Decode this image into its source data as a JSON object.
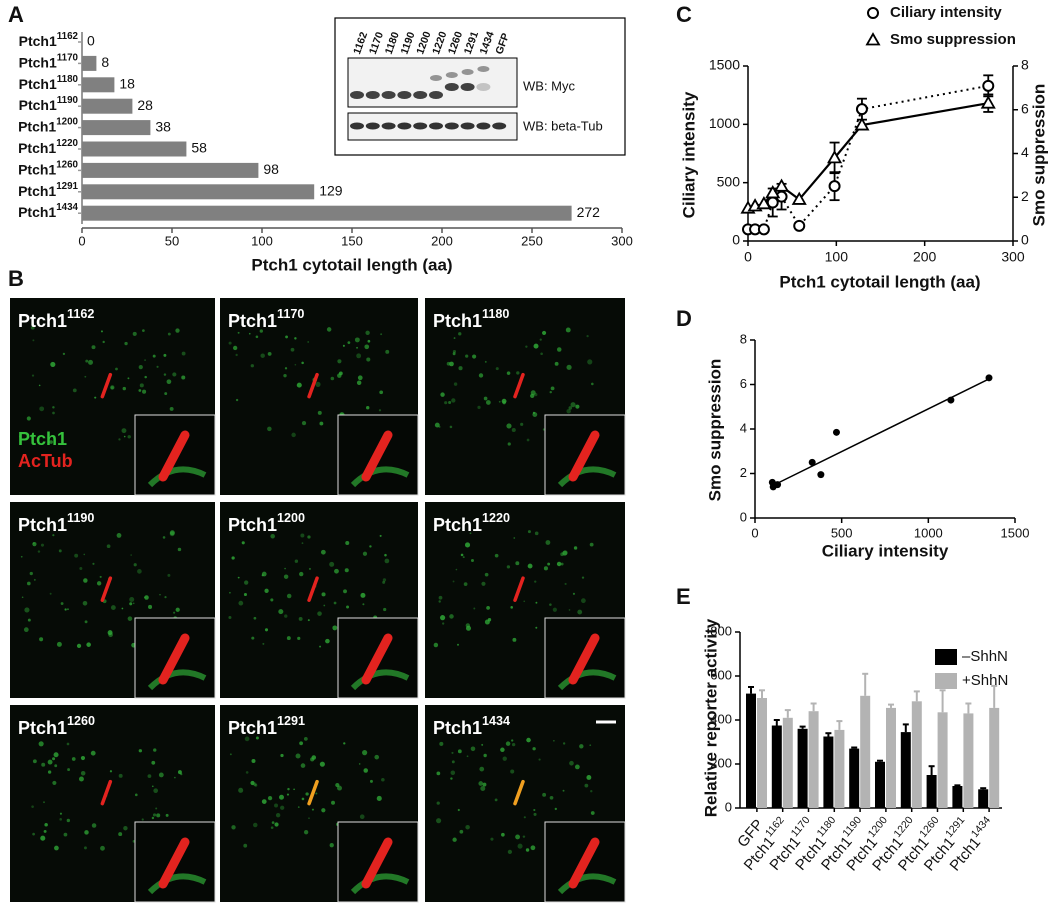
{
  "panels": [
    "A",
    "B",
    "C",
    "D",
    "E"
  ],
  "blot": {
    "lanes": [
      "1162",
      "1170",
      "1180",
      "1190",
      "1200",
      "1220",
      "1260",
      "1291",
      "1434",
      "GFP"
    ],
    "labels": [
      "WB: Myc",
      "WB: beta-Tub"
    ]
  },
  "micrographs": {
    "tiles": [
      {
        "text": "Ptch1",
        "sup": "1162"
      },
      {
        "text": "Ptch1",
        "sup": "1170"
      },
      {
        "text": "Ptch1",
        "sup": "1180"
      },
      {
        "text": "Ptch1",
        "sup": "1190"
      },
      {
        "text": "Ptch1",
        "sup": "1200"
      },
      {
        "text": "Ptch1",
        "sup": "1220"
      },
      {
        "text": "Ptch1",
        "sup": "1260"
      },
      {
        "text": "Ptch1",
        "sup": "1291"
      },
      {
        "text": "Ptch1",
        "sup": "1434"
      }
    ],
    "stains": [
      {
        "text": "Ptch1",
        "color": "#35c23c"
      },
      {
        "text": "AcTub",
        "color": "#e3231f"
      }
    ]
  },
  "chart_data": [
    {
      "type": "hbar",
      "categories": [
        {
          "text": "Ptch1",
          "sup": "1162"
        },
        {
          "text": "Ptch1",
          "sup": "1170"
        },
        {
          "text": "Ptch1",
          "sup": "1180"
        },
        {
          "text": "Ptch1",
          "sup": "1190"
        },
        {
          "text": "Ptch1",
          "sup": "1200"
        },
        {
          "text": "Ptch1",
          "sup": "1220"
        },
        {
          "text": "Ptch1",
          "sup": "1260"
        },
        {
          "text": "Ptch1",
          "sup": "1291"
        },
        {
          "text": "Ptch1",
          "sup": "1434"
        }
      ],
      "values": [
        0,
        8,
        18,
        28,
        38,
        58,
        98,
        129,
        272
      ],
      "color": "#808080",
      "xlim": [
        0,
        300
      ],
      "xticks": [
        0,
        50,
        100,
        150,
        200,
        250,
        300
      ],
      "xlabel": "Ptch1 cytotail length (aa)"
    },
    {
      "type": "dual_line",
      "x": [
        0,
        8,
        18,
        28,
        38,
        58,
        98,
        129,
        272
      ],
      "xlim": [
        0,
        300
      ],
      "xticks": [
        0,
        100,
        200,
        300
      ],
      "xlabel": "Ptch1 cytotail length (aa)",
      "ylabel": "Ciliary intensity",
      "ylim": [
        0,
        1500
      ],
      "yticks": [
        0,
        500,
        1000,
        1500
      ],
      "y2label": "Smo suppression",
      "y2lim": [
        0,
        8
      ],
      "y2ticks": [
        0,
        2,
        4,
        6,
        8
      ],
      "series": [
        {
          "name": "Ciliary intensity",
          "marker": "circle",
          "dash": "dotted",
          "color": "#000000",
          "values": [
            100,
            100,
            100,
            330,
            380,
            130,
            470,
            1130,
            1330
          ],
          "errors": [
            0,
            0,
            0,
            120,
            110,
            0,
            120,
            90,
            90
          ]
        },
        {
          "name": "Smo suppression",
          "axis": "y2",
          "marker": "triangle",
          "dash": "solid",
          "color": "#000000",
          "values": [
            1.5,
            1.6,
            1.7,
            2.2,
            2.5,
            1.9,
            3.8,
            5.3,
            6.3
          ],
          "errors": [
            0,
            0,
            0,
            0,
            0,
            0,
            0.7,
            0,
            0.4
          ]
        }
      ]
    },
    {
      "type": "scatter",
      "x": [
        100,
        105,
        130,
        330,
        380,
        470,
        1130,
        1350
      ],
      "values": [
        1.6,
        1.4,
        1.5,
        2.5,
        1.95,
        3.85,
        5.3,
        6.3
      ],
      "fit": {
        "x": [
          100,
          1350
        ],
        "values": [
          1.45,
          6.25
        ]
      },
      "color": "#000000",
      "xlim": [
        0,
        1500
      ],
      "xticks": [
        0,
        500,
        1000,
        1500
      ],
      "ylim": [
        0,
        8
      ],
      "yticks": [
        0,
        2,
        4,
        6,
        8
      ],
      "xlabel": "Ciliary intensity",
      "ylabel": "Smo suppression"
    },
    {
      "type": "grouped_bar",
      "categories": [
        {
          "text": "GFP",
          "sup": null
        },
        {
          "text": "Ptch1",
          "sup": "1162"
        },
        {
          "text": "Ptch1",
          "sup": "1170"
        },
        {
          "text": "Ptch1",
          "sup": "1180"
        },
        {
          "text": "Ptch1",
          "sup": "1190"
        },
        {
          "text": "Ptch1",
          "sup": "1200"
        },
        {
          "text": "Ptch1",
          "sup": "1220"
        },
        {
          "text": "Ptch1",
          "sup": "1260"
        },
        {
          "text": "Ptch1",
          "sup": "1291"
        },
        {
          "text": "Ptch1",
          "sup": "1434"
        }
      ],
      "ylabel": "Relative reporter activity",
      "ylim": [
        0,
        800
      ],
      "yticks": [
        0,
        200,
        400,
        600,
        800
      ],
      "legend": "top-right",
      "series": [
        {
          "name": "–ShhN",
          "color": "#000000",
          "values": [
            520,
            375,
            360,
            325,
            270,
            210,
            345,
            150,
            100,
            85
          ],
          "errors": [
            30,
            25,
            10,
            15,
            5,
            5,
            35,
            40,
            3,
            5
          ]
        },
        {
          "name": "+ShhN",
          "color": "#b3b3b3",
          "values": [
            500,
            410,
            440,
            355,
            510,
            455,
            485,
            435,
            430,
            455
          ],
          "errors": [
            35,
            35,
            35,
            40,
            100,
            15,
            45,
            100,
            45,
            100
          ]
        }
      ]
    }
  ]
}
